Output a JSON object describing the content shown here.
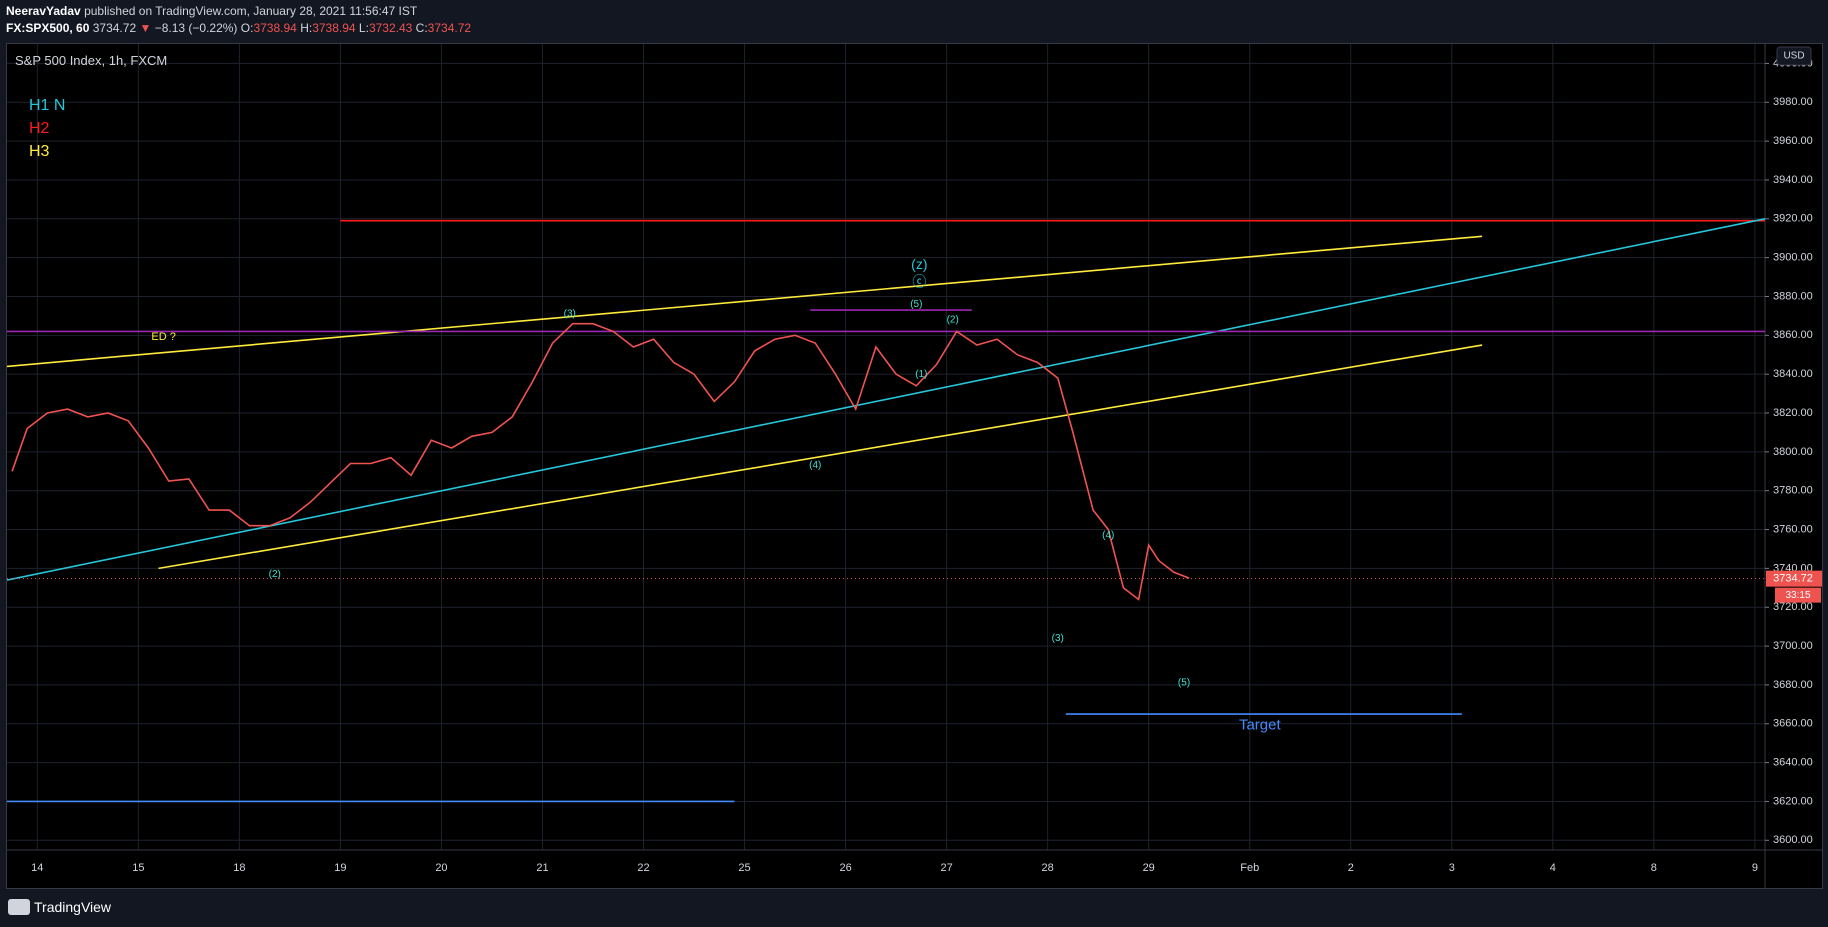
{
  "header": {
    "author": "NeeravYadav",
    "published": " published on TradingView.com, January 28, 2021 11:56:47 IST",
    "symbol": "FX:SPX500, 60",
    "last": "3734.72",
    "arrow": "▼",
    "change": "−8.13 (−0.22%)",
    "o_label": "O:",
    "o_val": "3738.94",
    "h_label": "H:",
    "h_val": "3738.94",
    "l_label": "L:",
    "l_val": "3732.43",
    "c_label": "C:",
    "c_val": "3734.72"
  },
  "chart_title": "S&P 500 Index, 1h, FXCM",
  "footer": {
    "brand": "TradingView"
  },
  "colors": {
    "up": "#26a69a",
    "down": "#ef5350",
    "cyan": "#26c6da",
    "red": "#ff1c1c",
    "yellow": "#ffeb3b",
    "purple": "#9c27b0",
    "blue": "#448aff",
    "label": "#40e0d0"
  },
  "chart_data": {
    "type": "line",
    "currency": "USD",
    "ylim": [
      3595,
      4010
    ],
    "y_ticks": [
      3600,
      3620,
      3640,
      3660,
      3680,
      3700,
      3720,
      3740,
      3760,
      3780,
      3800,
      3820,
      3840,
      3860,
      3880,
      3900,
      3920,
      3940,
      3960,
      3980,
      4000
    ],
    "y_tick_labels": [
      "3600.00",
      "3620.00",
      "3640.00",
      "3660.00",
      "3680.00",
      "3700.00",
      "3720.00",
      "3740.00",
      "3760.00",
      "3780.00",
      "3800.00",
      "3820.00",
      "3840.00",
      "3860.00",
      "3880.00",
      "3900.00",
      "3920.00",
      "3940.00",
      "3960.00",
      "3980.00",
      "4000.00"
    ],
    "xlim": [
      -0.3,
      17.1
    ],
    "x_ticks": [
      0,
      1,
      2,
      3,
      4,
      5,
      6,
      7,
      8,
      9,
      10,
      11,
      12,
      13,
      14,
      15,
      16,
      17
    ],
    "x_tick_labels": [
      "14",
      "15",
      "18",
      "19",
      "20",
      "21",
      "22",
      "25",
      "26",
      "27",
      "28",
      "29",
      "Feb",
      "2",
      "3",
      "4",
      "8",
      "9"
    ],
    "last_price": "3734.72",
    "countdown": "33:15",
    "price_path": [
      [
        -0.25,
        3790
      ],
      [
        -0.1,
        3812
      ],
      [
        0.1,
        3820
      ],
      [
        0.3,
        3822
      ],
      [
        0.5,
        3818
      ],
      [
        0.7,
        3820
      ],
      [
        0.9,
        3816
      ],
      [
        1.1,
        3802
      ],
      [
        1.3,
        3785
      ],
      [
        1.5,
        3786
      ],
      [
        1.7,
        3770
      ],
      [
        1.9,
        3770
      ],
      [
        2.1,
        3762
      ],
      [
        2.3,
        3762
      ],
      [
        2.5,
        3766
      ],
      [
        2.7,
        3774
      ],
      [
        2.9,
        3784
      ],
      [
        3.1,
        3794
      ],
      [
        3.3,
        3794
      ],
      [
        3.5,
        3797
      ],
      [
        3.7,
        3788
      ],
      [
        3.9,
        3806
      ],
      [
        4.1,
        3802
      ],
      [
        4.3,
        3808
      ],
      [
        4.5,
        3810
      ],
      [
        4.7,
        3818
      ],
      [
        4.9,
        3836
      ],
      [
        5.1,
        3856
      ],
      [
        5.3,
        3866
      ],
      [
        5.5,
        3866
      ],
      [
        5.7,
        3862
      ],
      [
        5.9,
        3854
      ],
      [
        6.1,
        3858
      ],
      [
        6.3,
        3846
      ],
      [
        6.5,
        3840
      ],
      [
        6.7,
        3826
      ],
      [
        6.9,
        3836
      ],
      [
        7.1,
        3852
      ],
      [
        7.3,
        3858
      ],
      [
        7.5,
        3860
      ],
      [
        7.7,
        3856
      ],
      [
        7.9,
        3840
      ],
      [
        8.1,
        3822
      ],
      [
        8.3,
        3854
      ],
      [
        8.5,
        3840
      ],
      [
        8.7,
        3834
      ],
      [
        8.9,
        3845
      ],
      [
        9.1,
        3862
      ],
      [
        9.3,
        3855
      ],
      [
        9.5,
        3858
      ],
      [
        9.7,
        3850
      ],
      [
        9.9,
        3846
      ],
      [
        10.1,
        3838
      ],
      [
        10.25,
        3810
      ],
      [
        10.45,
        3770
      ],
      [
        10.6,
        3760
      ],
      [
        10.75,
        3730
      ],
      [
        10.9,
        3724
      ],
      [
        11.0,
        3752
      ],
      [
        11.1,
        3744
      ],
      [
        11.25,
        3738
      ],
      [
        11.4,
        3735
      ]
    ],
    "lines": [
      {
        "color_key": "red",
        "x1": 3.0,
        "y1": 3919,
        "x2": 17.1,
        "y2": 3919
      },
      {
        "color_key": "cyan",
        "x1": -0.3,
        "y1": 3734,
        "x2": 17.1,
        "y2": 3920
      },
      {
        "color_key": "yellow",
        "x1": -0.3,
        "y1": 3844,
        "x2": 14.3,
        "y2": 3911
      },
      {
        "color_key": "yellow",
        "x1": 1.2,
        "y1": 3740,
        "x2": 14.3,
        "y2": 3855
      },
      {
        "color_key": "purple",
        "x1": -0.3,
        "y1": 3862,
        "x2": 17.1,
        "y2": 3862
      },
      {
        "color_key": "purple",
        "x1": 7.65,
        "y1": 3873,
        "x2": 9.25,
        "y2": 3873
      },
      {
        "color_key": "blue",
        "x1": -0.3,
        "y1": 3620,
        "x2": 6.9,
        "y2": 3620
      },
      {
        "color_key": "blue",
        "x1": 10.18,
        "y1": 3665,
        "x2": 14.1,
        "y2": 3665
      }
    ],
    "wave_labels": [
      {
        "text": "(3)",
        "x": 5.27,
        "y": 3871
      },
      {
        "text": "(2)",
        "x": 2.35,
        "y": 3737
      },
      {
        "text": "(4)",
        "x": 7.7,
        "y": 3793
      },
      {
        "text": "(5)",
        "x": 8.7,
        "y": 3876
      },
      {
        "text": "(2)",
        "x": 9.06,
        "y": 3868
      },
      {
        "text": "(1)",
        "x": 8.75,
        "y": 3840
      },
      {
        "text": "(3)",
        "x": 10.1,
        "y": 3704
      },
      {
        "text": "(4)",
        "x": 10.6,
        "y": 3757
      },
      {
        "text": "(5)",
        "x": 11.35,
        "y": 3681
      }
    ],
    "annotations": [
      {
        "text": "ED ?",
        "x": 1.25,
        "y": 3859,
        "color_key": "yellow",
        "size": 11
      },
      {
        "text": "Target",
        "x": 12.1,
        "y": 3659,
        "color_key": "blue",
        "size": 15
      },
      {
        "text": "(z)",
        "x": 8.73,
        "y": 3896,
        "color_key": "cyan",
        "size": 14
      },
      {
        "text": "ⓒ",
        "x": 8.73,
        "y": 3887,
        "color_key": "cyan",
        "size": 14
      }
    ],
    "legend": [
      {
        "text": "H1 N",
        "color_key": "cyan"
      },
      {
        "text": "H2",
        "color_key": "red"
      },
      {
        "text": "H3",
        "color_key": "yellow"
      }
    ]
  }
}
